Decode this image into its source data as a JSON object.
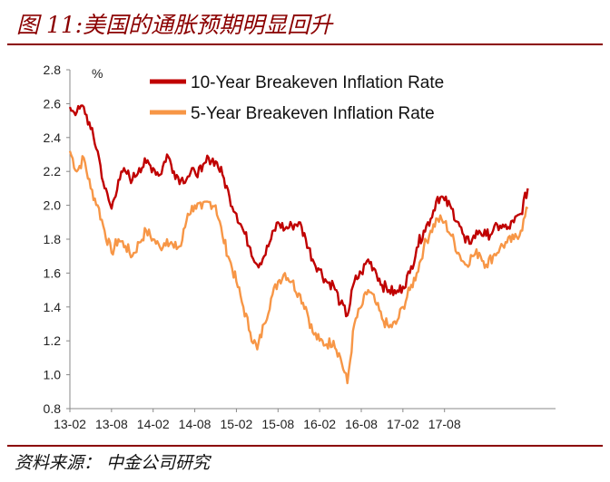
{
  "header": {
    "title": "图 11:美国的通胀预期明显回升"
  },
  "footer": {
    "source": "资料来源： 中金公司研究"
  },
  "chart_data": {
    "type": "line",
    "title": "图 11:美国的通胀预期明显回升",
    "ylabel": "%",
    "xlabel": "",
    "ylim": [
      0.8,
      2.8
    ],
    "yticks": [
      "2.8",
      "2.6",
      "2.4",
      "2.2",
      "2.0",
      "1.8",
      "1.6",
      "1.4",
      "1.2",
      "1.0",
      "0.8"
    ],
    "xticks": [
      "13-02",
      "13-08",
      "14-02",
      "14-08",
      "15-02",
      "15-08",
      "16-02",
      "16-08",
      "17-02",
      "17-08"
    ],
    "x_range_months": [
      0,
      70
    ],
    "legend": "top-center",
    "series": [
      {
        "name": "10-Year Breakeven Inflation Rate",
        "color": "#c00000",
        "points": [
          [
            0,
            2.58
          ],
          [
            1,
            2.55
          ],
          [
            2,
            2.58
          ],
          [
            3,
            2.45
          ],
          [
            4,
            2.32
          ],
          [
            5,
            2.1
          ],
          [
            6,
            1.98
          ],
          [
            7,
            2.15
          ],
          [
            8,
            2.2
          ],
          [
            9,
            2.15
          ],
          [
            10,
            2.22
          ],
          [
            11,
            2.25
          ],
          [
            12,
            2.22
          ],
          [
            13,
            2.18
          ],
          [
            14,
            2.3
          ],
          [
            15,
            2.2
          ],
          [
            16,
            2.15
          ],
          [
            17,
            2.17
          ],
          [
            18,
            2.2
          ],
          [
            19,
            2.2
          ],
          [
            20,
            2.28
          ],
          [
            21,
            2.26
          ],
          [
            22,
            2.18
          ],
          [
            23,
            2.05
          ],
          [
            24,
            1.95
          ],
          [
            25,
            1.85
          ],
          [
            26,
            1.75
          ],
          [
            27,
            1.65
          ],
          [
            28,
            1.7
          ],
          [
            29,
            1.8
          ],
          [
            30,
            1.9
          ],
          [
            31,
            1.86
          ],
          [
            32,
            1.88
          ],
          [
            33,
            1.9
          ],
          [
            34,
            1.8
          ],
          [
            35,
            1.68
          ],
          [
            36,
            1.62
          ],
          [
            37,
            1.55
          ],
          [
            38,
            1.53
          ],
          [
            39,
            1.42
          ],
          [
            40,
            1.35
          ],
          [
            41,
            1.55
          ],
          [
            42,
            1.6
          ],
          [
            43,
            1.68
          ],
          [
            44,
            1.62
          ],
          [
            45,
            1.53
          ],
          [
            46,
            1.5
          ],
          [
            47,
            1.48
          ],
          [
            48,
            1.52
          ],
          [
            49,
            1.6
          ],
          [
            50,
            1.75
          ],
          [
            51,
            1.85
          ],
          [
            52,
            1.92
          ],
          [
            53,
            2.05
          ],
          [
            54,
            2.03
          ],
          [
            55,
            1.98
          ],
          [
            56,
            1.9
          ],
          [
            57,
            1.78
          ],
          [
            58,
            1.8
          ],
          [
            59,
            1.85
          ],
          [
            60,
            1.82
          ],
          [
            61,
            1.85
          ],
          [
            62,
            1.88
          ],
          [
            63,
            1.86
          ],
          [
            64,
            1.9
          ],
          [
            65,
            1.95
          ],
          [
            66,
            2.1
          ]
        ]
      },
      {
        "name": "5-Year Breakeven Inflation Rate",
        "color": "#f79646",
        "points": [
          [
            0,
            2.32
          ],
          [
            1,
            2.2
          ],
          [
            2,
            2.28
          ],
          [
            3,
            2.1
          ],
          [
            4,
            2.0
          ],
          [
            5,
            1.85
          ],
          [
            6,
            1.72
          ],
          [
            7,
            1.8
          ],
          [
            8,
            1.76
          ],
          [
            9,
            1.7
          ],
          [
            10,
            1.78
          ],
          [
            11,
            1.85
          ],
          [
            12,
            1.8
          ],
          [
            13,
            1.75
          ],
          [
            14,
            1.8
          ],
          [
            15,
            1.75
          ],
          [
            16,
            1.76
          ],
          [
            17,
            1.95
          ],
          [
            18,
            2.0
          ],
          [
            19,
            1.98
          ],
          [
            20,
            2.02
          ],
          [
            21,
            2.0
          ],
          [
            22,
            1.82
          ],
          [
            23,
            1.68
          ],
          [
            24,
            1.55
          ],
          [
            25,
            1.4
          ],
          [
            26,
            1.25
          ],
          [
            27,
            1.15
          ],
          [
            28,
            1.3
          ],
          [
            29,
            1.45
          ],
          [
            30,
            1.55
          ],
          [
            31,
            1.6
          ],
          [
            32,
            1.55
          ],
          [
            33,
            1.48
          ],
          [
            34,
            1.4
          ],
          [
            35,
            1.25
          ],
          [
            36,
            1.2
          ],
          [
            37,
            1.18
          ],
          [
            38,
            1.2
          ],
          [
            39,
            1.1
          ],
          [
            40,
            0.95
          ],
          [
            41,
            1.3
          ],
          [
            42,
            1.4
          ],
          [
            43,
            1.5
          ],
          [
            44,
            1.43
          ],
          [
            45,
            1.33
          ],
          [
            46,
            1.28
          ],
          [
            47,
            1.3
          ],
          [
            48,
            1.4
          ],
          [
            49,
            1.5
          ],
          [
            50,
            1.6
          ],
          [
            51,
            1.75
          ],
          [
            52,
            1.85
          ],
          [
            53,
            1.92
          ],
          [
            54,
            1.9
          ],
          [
            55,
            1.82
          ],
          [
            56,
            1.72
          ],
          [
            57,
            1.65
          ],
          [
            58,
            1.7
          ],
          [
            59,
            1.72
          ],
          [
            60,
            1.65
          ],
          [
            61,
            1.7
          ],
          [
            62,
            1.75
          ],
          [
            63,
            1.78
          ],
          [
            64,
            1.8
          ],
          [
            65,
            1.85
          ],
          [
            66,
            1.98
          ]
        ]
      }
    ]
  }
}
